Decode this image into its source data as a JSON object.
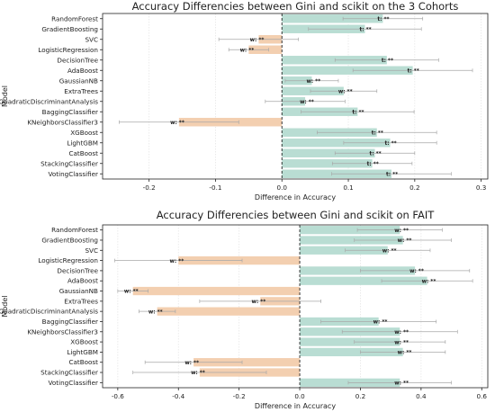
{
  "colors": {
    "positive": "#b9ddd3",
    "negative": "#f3cfb0",
    "zero_line": "#222222",
    "grid": "#e6e6e6",
    "error": "#a8a8a8"
  },
  "chart_data": [
    {
      "type": "bar",
      "orientation": "horizontal",
      "title": "Accuracy Differencies between Gini and scikit on the 3 Cohorts",
      "xlabel": "Difference in Accuracy",
      "ylabel": "Model",
      "xlim": [
        -0.27,
        0.31
      ],
      "xticks": [
        -0.2,
        -0.1,
        0.0,
        0.1,
        0.2,
        0.3
      ],
      "xtick_labels": [
        "-0.2",
        "-0.1",
        "0.0",
        "0.1",
        "0.2",
        "0.3"
      ],
      "grid": "vertical",
      "categories": [
        "RandomForest",
        "GradientBoosting",
        "SVC",
        "LogisticRegression",
        "DecisionTree",
        "AdaBoost",
        "GaussianNB",
        "ExtraTrees",
        "QuadraticDiscriminantAnalysis",
        "BaggingClassifier",
        "KNeighborsClassifier3",
        "XGBoost",
        "LightGBM",
        "CatBoost",
        "StackingClassifier",
        "VotingClassifier"
      ],
      "values": [
        0.152,
        0.125,
        -0.035,
        -0.05,
        0.158,
        0.197,
        0.045,
        0.093,
        0.035,
        0.114,
        -0.155,
        0.143,
        0.163,
        0.14,
        0.136,
        0.165
      ],
      "err": [
        0.06,
        0.085,
        0.06,
        0.03,
        0.078,
        0.09,
        0.04,
        0.05,
        0.06,
        0.085,
        0.09,
        0.09,
        0.07,
        0.06,
        0.06,
        0.09
      ],
      "annotations": [
        "t: **",
        "t: **",
        "w: **",
        "w: **",
        "t: **",
        "t: **",
        "w: **",
        "w: **",
        "w: **",
        "t: **",
        "w: **",
        "t: **",
        "t: **",
        "t: **",
        "t: **",
        "t: **"
      ]
    },
    {
      "type": "bar",
      "orientation": "horizontal",
      "title": "Accuracy Differencies between Gini and scikit on FAIT",
      "xlabel": "Difference in Accuracy",
      "ylabel": "Model",
      "xlim": [
        -0.65,
        0.62
      ],
      "xticks": [
        -0.6,
        -0.4,
        -0.2,
        0.0,
        0.2,
        0.4,
        0.6
      ],
      "xtick_labels": [
        "-0.6",
        "-0.4",
        "-0.2",
        "0.0",
        "0.2",
        "0.4",
        "0.6"
      ],
      "grid": "vertical",
      "categories": [
        "RandomForest",
        "GradientBoosting",
        "SVC",
        "LogisticRegression",
        "DecisionTree",
        "AdaBoost",
        "GaussianNB",
        "ExtraTrees",
        "QuadraticDiscriminantAnalysis",
        "BaggingClassifier",
        "KNeighborsClassifier3",
        "XGBoost",
        "LightGBM",
        "CatBoost",
        "StackingClassifier",
        "VotingClassifier"
      ],
      "values": [
        0.33,
        0.34,
        0.29,
        -0.4,
        0.38,
        0.42,
        -0.55,
        -0.13,
        -0.47,
        0.26,
        0.33,
        0.33,
        0.34,
        -0.35,
        -0.33,
        0.33
      ],
      "err": [
        0.14,
        0.16,
        0.14,
        0.21,
        0.18,
        0.15,
        0.05,
        0.2,
        0.06,
        0.19,
        0.19,
        0.15,
        0.14,
        0.16,
        0.22,
        0.17
      ],
      "annotations": [
        "w: **",
        "w: **",
        "w: **",
        "w: **",
        "w: **",
        "w: **",
        "w: **",
        "w: **",
        "w: **",
        "w: **",
        "w: **",
        "w: **",
        "w: **",
        "w: **",
        "w: **",
        "w: **"
      ]
    }
  ]
}
